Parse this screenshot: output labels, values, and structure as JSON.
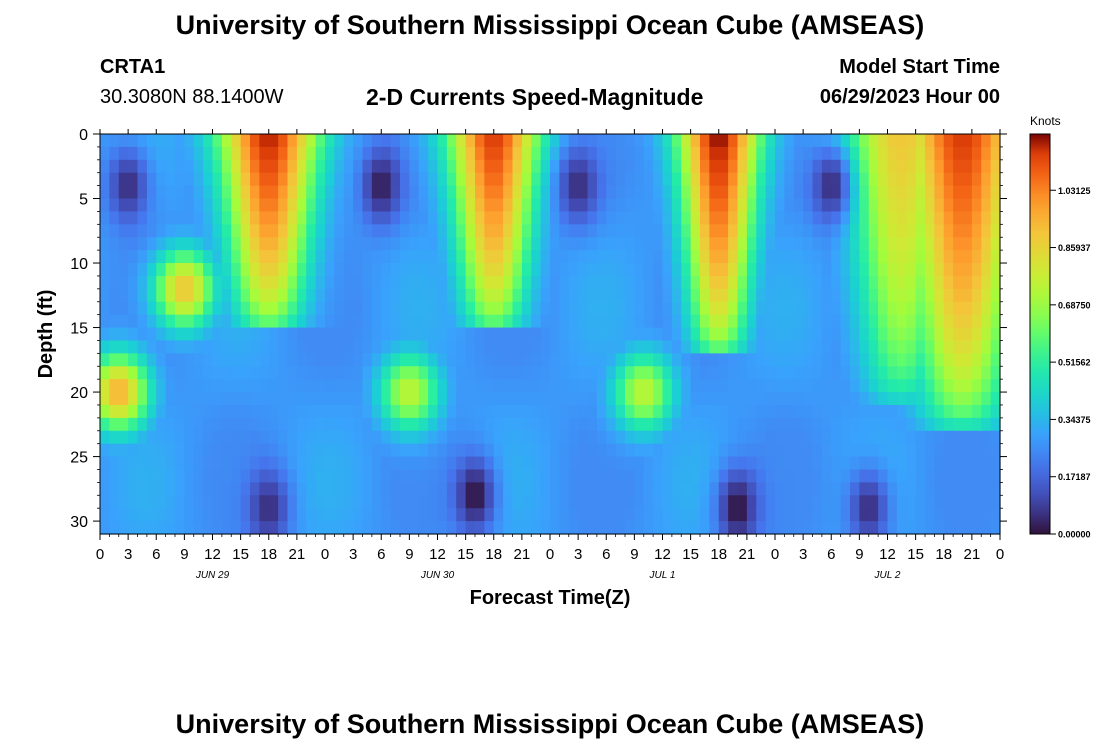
{
  "header": {
    "title": "University of Southern Mississippi Ocean Cube (AMSEAS)",
    "station": "CRTA1",
    "coordinates": "30.3080N  88.1400W",
    "subtitle": "2-D Currents Speed-Magnitude",
    "model_start_label": "Model Start Time",
    "model_start_value": "06/29/2023 Hour 00"
  },
  "footer": {
    "title": "University of Southern Mississippi Ocean Cube (AMSEAS)"
  },
  "chart_data": {
    "type": "heatmap",
    "title": "2-D Currents Speed-Magnitude",
    "xlabel": "Forecast Time(Z)",
    "ylabel": "Depth (ft)",
    "x_tick_labels": [
      "0",
      "3",
      "6",
      "9",
      "12",
      "15",
      "18",
      "21",
      "0",
      "3",
      "6",
      "9",
      "12",
      "15",
      "18",
      "21",
      "0",
      "3",
      "6",
      "9",
      "12",
      "15",
      "18",
      "21",
      "0",
      "3",
      "6",
      "9",
      "12",
      "15",
      "18",
      "21",
      "0"
    ],
    "day_labels": [
      {
        "label": "JUN 29",
        "hour": 12
      },
      {
        "label": "JUN 30",
        "hour": 36
      },
      {
        "label": "JUL 1",
        "hour": 60
      },
      {
        "label": "JUL 2",
        "hour": 84
      }
    ],
    "xlim_hours": [
      0,
      96
    ],
    "ylim_ft": [
      0,
      31
    ],
    "y_ticks": [
      0,
      5,
      10,
      15,
      20,
      25,
      30
    ],
    "y_inverted": true,
    "colorbar": {
      "title": "Knots",
      "ticks": [
        "1.03125",
        "0.85937",
        "0.68750",
        "0.51562",
        "0.34375",
        "0.17187",
        "0.00000"
      ],
      "range": [
        0,
        1.2
      ]
    },
    "surface_peaks": [
      {
        "center_hour": 18,
        "half_width_hours": 5.5,
        "max_depth_ft": 15.5,
        "value": 1.18
      },
      {
        "center_hour": 42,
        "half_width_hours": 5,
        "max_depth_ft": 15.5,
        "value": 1.15
      },
      {
        "center_hour": 66,
        "half_width_hours": 4.5,
        "max_depth_ft": 17.5,
        "value": 1.2
      },
      {
        "center_hour": 85.5,
        "half_width_hours": 6,
        "max_depth_ft": 21,
        "value": 0.9
      },
      {
        "center_hour": 92,
        "half_width_hours": 7,
        "max_depth_ft": 23,
        "value": 1.15
      }
    ],
    "subsurface_peaks": [
      {
        "center_hour": 2,
        "center_depth_ft": 20,
        "value": 0.95
      },
      {
        "center_hour": 33,
        "center_depth_ft": 20,
        "value": 0.75
      },
      {
        "center_hour": 58,
        "center_depth_ft": 20,
        "value": 0.75
      },
      {
        "center_hour": 9,
        "center_depth_ft": 12,
        "value": 0.9
      }
    ],
    "minima": [
      {
        "center_hour": 3,
        "center_depth_ft": 4,
        "value": 0.05
      },
      {
        "center_hour": 30,
        "center_depth_ft": 4,
        "value": 0.02
      },
      {
        "center_hour": 51,
        "center_depth_ft": 4,
        "value": 0.05
      },
      {
        "center_hour": 78,
        "center_depth_ft": 4,
        "value": 0.05
      },
      {
        "center_hour": 18,
        "center_depth_ft": 29,
        "value": 0.05
      },
      {
        "center_hour": 40,
        "center_depth_ft": 28,
        "value": 0.0
      },
      {
        "center_hour": 68,
        "center_depth_ft": 29,
        "value": 0.0
      },
      {
        "center_hour": 82,
        "center_depth_ft": 29,
        "value": 0.05
      }
    ]
  }
}
